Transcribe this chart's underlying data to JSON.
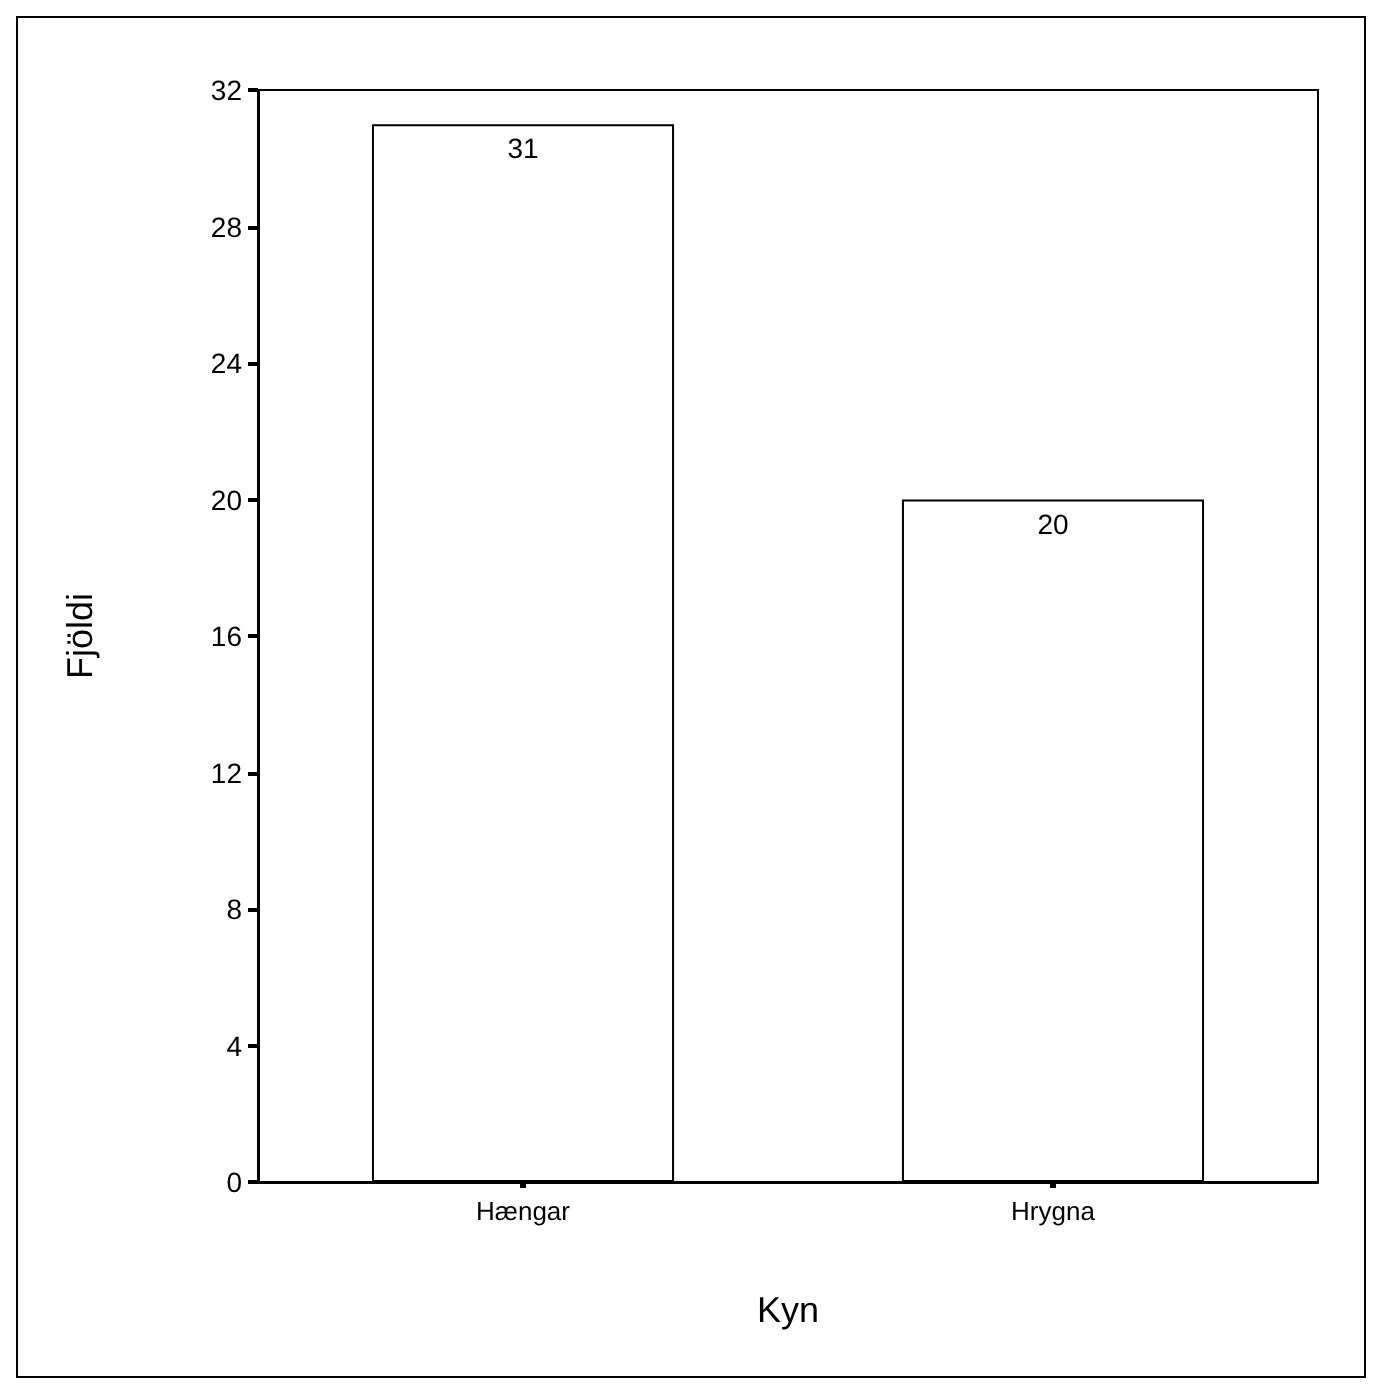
{
  "chart_data": {
    "type": "bar",
    "xlabel": "Kyn",
    "ylabel": "Fjöldi",
    "categories": [
      "Hængar",
      "Hrygna"
    ],
    "values": [
      31,
      20
    ],
    "color": "#ffffff",
    "ylim": [
      0,
      32
    ],
    "yticks": [
      0,
      4,
      8,
      12,
      16,
      20,
      24,
      28,
      32
    ],
    "data_labels": true,
    "grid": false
  }
}
